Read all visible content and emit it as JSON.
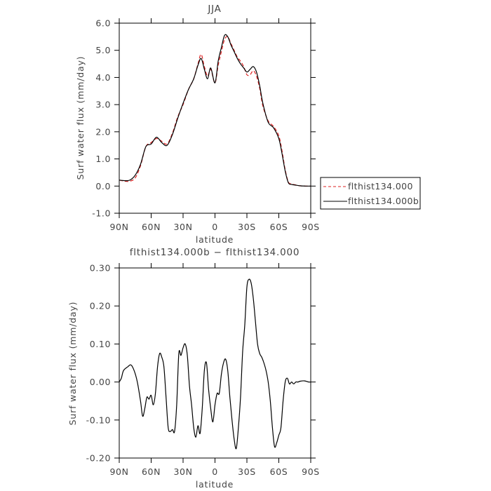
{
  "chart_data": [
    {
      "type": "line",
      "title": "JJA",
      "xlabel": "latitude",
      "ylabel": "Surf water flux (mm/day)",
      "x_direction": "north-to-south",
      "xlim": [
        90,
        -90
      ],
      "ylim": [
        -1.0,
        6.0
      ],
      "xticks": [
        90,
        60,
        30,
        0,
        -30,
        -60,
        -90
      ],
      "xtick_labels": [
        "90N",
        "60N",
        "30N",
        "0",
        "30S",
        "60S",
        "90S"
      ],
      "yticks": [
        -1.0,
        0.0,
        1.0,
        2.0,
        3.0,
        4.0,
        5.0,
        6.0
      ],
      "ytick_labels": [
        "-1.0",
        "0.0",
        "1.0",
        "2.0",
        "3.0",
        "4.0",
        "5.0",
        "6.0"
      ],
      "grid": false,
      "legend_position": "right",
      "series": [
        {
          "name": "flthist134.000",
          "color": "#dd2222",
          "line_style": "dashed",
          "x": [
            90,
            85,
            80,
            75,
            70,
            65,
            60,
            55,
            50,
            45,
            40,
            35,
            30,
            25,
            20,
            16,
            13,
            10,
            7,
            4,
            0,
            -3,
            -6,
            -9,
            -12,
            -15,
            -18,
            -21,
            -24,
            -27,
            -30,
            -33,
            -36,
            -39,
            -42,
            -45,
            -50,
            -55,
            -60,
            -63,
            -66,
            -69,
            -72,
            -75,
            -80,
            -85,
            -90
          ],
          "y": [
            0.22,
            0.18,
            0.18,
            0.3,
            0.75,
            1.45,
            1.6,
            1.75,
            1.65,
            1.55,
            1.95,
            2.55,
            3.0,
            3.55,
            3.95,
            4.5,
            4.85,
            4.4,
            4.05,
            4.3,
            3.8,
            4.45,
            4.95,
            5.4,
            5.5,
            5.25,
            5.0,
            4.75,
            4.6,
            4.4,
            4.1,
            4.1,
            4.25,
            4.05,
            3.6,
            2.95,
            2.4,
            2.2,
            1.85,
            1.3,
            0.6,
            0.15,
            0.08,
            0.05,
            0.01,
            0.0,
            0.0
          ]
        },
        {
          "name": "flthist134.000b",
          "color": "#000000",
          "line_style": "solid",
          "x": [
            90,
            85,
            80,
            75,
            70,
            65,
            60,
            55,
            50,
            45,
            40,
            35,
            30,
            25,
            20,
            16,
            13,
            10,
            7,
            4,
            0,
            -3,
            -6,
            -9,
            -12,
            -15,
            -18,
            -21,
            -24,
            -27,
            -30,
            -33,
            -36,
            -39,
            -42,
            -45,
            -50,
            -55,
            -60,
            -63,
            -66,
            -69,
            -72,
            -75,
            -80,
            -85,
            -90
          ],
          "y": [
            0.22,
            0.2,
            0.22,
            0.4,
            0.8,
            1.45,
            1.55,
            1.8,
            1.6,
            1.5,
            1.9,
            2.5,
            3.05,
            3.55,
            3.95,
            4.45,
            4.7,
            4.3,
            3.95,
            4.35,
            3.8,
            4.6,
            5.1,
            5.55,
            5.5,
            5.2,
            4.95,
            4.7,
            4.5,
            4.35,
            4.2,
            4.3,
            4.4,
            4.2,
            3.7,
            3.05,
            2.35,
            2.15,
            1.75,
            1.2,
            0.55,
            0.12,
            0.06,
            0.04,
            0.01,
            0.0,
            0.0
          ]
        }
      ]
    },
    {
      "type": "line",
      "title": "flthist134.000b − flthist134.000",
      "xlabel": "latitude",
      "ylabel": "Surf water flux (mm/day)",
      "x_direction": "north-to-south",
      "xlim": [
        90,
        -90
      ],
      "ylim": [
        -0.2,
        0.3
      ],
      "xticks": [
        90,
        60,
        30,
        0,
        -30,
        -60,
        -90
      ],
      "xtick_labels": [
        "90N",
        "60N",
        "30N",
        "0",
        "30S",
        "60S",
        "90S"
      ],
      "yticks": [
        -0.2,
        -0.1,
        0.0,
        0.1,
        0.2,
        0.3
      ],
      "ytick_labels": [
        "-0.20",
        "-0.10",
        "0.00",
        "0.10",
        "0.20",
        "0.30"
      ],
      "grid": false,
      "series": [
        {
          "color": "#000000",
          "line_style": "solid",
          "x": [
            90,
            88,
            86,
            82,
            79,
            76,
            73,
            70,
            68,
            66,
            64,
            62,
            60,
            58,
            56,
            54,
            52,
            50,
            48,
            46,
            44,
            42,
            40,
            38,
            36,
            34,
            32,
            30,
            28,
            26,
            24,
            22,
            20,
            18,
            16,
            14,
            12,
            10,
            8,
            6,
            4,
            2,
            0,
            -2,
            -4,
            -6,
            -8,
            -10,
            -12,
            -14,
            -16,
            -18,
            -20,
            -22,
            -24,
            -26,
            -28,
            -30,
            -32,
            -34,
            -36,
            -38,
            -40,
            -42,
            -44,
            -46,
            -48,
            -50,
            -52,
            -54,
            -56,
            -58,
            -60,
            -62,
            -64,
            -66,
            -68,
            -70,
            -72,
            -74,
            -76,
            -78,
            -80,
            -84,
            -88,
            -90
          ],
          "y": [
            0.0,
            0.01,
            0.03,
            0.04,
            0.045,
            0.03,
            0.0,
            -0.05,
            -0.09,
            -0.07,
            -0.04,
            -0.045,
            -0.035,
            -0.06,
            -0.03,
            0.04,
            0.075,
            0.065,
            0.04,
            -0.04,
            -0.12,
            -0.13,
            -0.125,
            -0.13,
            -0.06,
            0.075,
            0.07,
            0.09,
            0.1,
            0.07,
            -0.01,
            -0.06,
            -0.12,
            -0.145,
            -0.115,
            -0.135,
            -0.07,
            0.03,
            0.05,
            -0.02,
            -0.07,
            -0.105,
            -0.06,
            -0.03,
            -0.03,
            0.02,
            0.05,
            0.06,
            0.03,
            -0.04,
            -0.1,
            -0.15,
            -0.175,
            -0.12,
            -0.04,
            0.08,
            0.15,
            0.25,
            0.27,
            0.26,
            0.22,
            0.16,
            0.1,
            0.075,
            0.065,
            0.05,
            0.03,
            0.0,
            -0.05,
            -0.12,
            -0.17,
            -0.16,
            -0.14,
            -0.12,
            -0.05,
            0.0,
            0.01,
            -0.005,
            0.0,
            -0.005,
            0.0,
            0.0,
            0.002,
            0.003,
            0.0,
            0.0
          ]
        }
      ]
    }
  ]
}
